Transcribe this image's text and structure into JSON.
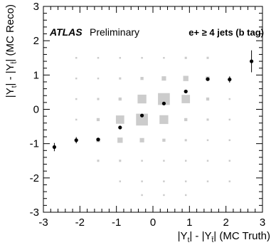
{
  "chart_data": {
    "type": "scatter",
    "annotations": {
      "experiment": "ATLAS",
      "status": "Preliminary",
      "channel": "e+ ≥ 4 jets (b tag)"
    },
    "xlabel": {
      "main": "|Y",
      "sub1": "t",
      "mid": "| - |Y",
      "sub2": "t̄",
      "end": "| (MC Truth)"
    },
    "ylabel": {
      "main": "|Y",
      "sub1": "t",
      "mid": "| - |Y",
      "sub2": "t̄",
      "end": "| (MC Reco)"
    },
    "xlim": [
      -3,
      3
    ],
    "ylim": [
      -3,
      3
    ],
    "xticks": [
      "-3",
      "-2",
      "-1",
      "0",
      "1",
      "2",
      "3"
    ],
    "yticks": [
      "-3",
      "-2",
      "-1",
      "0",
      "1",
      "2",
      "3"
    ],
    "grid": false,
    "bin_edges": [
      -3,
      -2.4,
      -1.8,
      -1.2,
      -0.6,
      0,
      0.6,
      1.2,
      1.8,
      2.4,
      3
    ],
    "migration_color": "#cccccc",
    "migration_matrix_relative_size": [
      [
        0.0,
        0.0,
        0.0,
        0.0,
        0.0,
        0.0,
        0.0,
        0.0,
        0.0,
        0.0
      ],
      [
        0.0,
        0.0,
        0.0,
        0.0,
        0.0,
        0.0,
        0.0,
        0.0,
        0.0,
        0.0
      ],
      [
        0.0,
        0.0,
        0.0,
        0.0,
        0.0,
        0.0,
        0.0,
        0.0,
        0.0,
        0.0
      ],
      [
        0.0,
        0.0,
        0.0,
        0.0,
        0.0,
        0.0,
        0.0,
        0.0,
        0.0,
        0.0
      ],
      [
        0.0,
        0.0,
        0.0,
        0.0,
        0.0,
        0.0,
        0.0,
        0.0,
        0.0,
        0.0
      ],
      [
        0.0,
        0.0,
        0.0,
        0.0,
        0.0,
        0.0,
        0.0,
        0.0,
        0.0,
        0.0
      ],
      [
        0.0,
        0.0,
        0.0,
        0.0,
        0.0,
        0.0,
        0.0,
        0.0,
        0.0,
        0.0
      ],
      [
        0.0,
        0.0,
        0.0,
        0.0,
        0.0,
        0.0,
        0.0,
        0.0,
        0.0,
        0.0
      ],
      [
        0.0,
        0.0,
        0.0,
        0.0,
        0.0,
        0.0,
        0.0,
        0.0,
        0.0,
        0.0
      ],
      [
        0.0,
        0.0,
        0.0,
        0.0,
        0.0,
        0.0,
        0.0,
        0.0,
        0.0,
        0.0
      ]
    ],
    "migration_boxes": [
      {
        "x": -2.1,
        "y": 1.5,
        "s": 0.08
      },
      {
        "x": -1.5,
        "y": 1.5,
        "s": 0.08
      },
      {
        "x": -0.9,
        "y": 1.5,
        "s": 0.08
      },
      {
        "x": -0.3,
        "y": 1.5,
        "s": 0.08
      },
      {
        "x": 0.3,
        "y": 1.5,
        "s": 0.08
      },
      {
        "x": 0.9,
        "y": 1.5,
        "s": 0.1
      },
      {
        "x": 1.5,
        "y": 1.5,
        "s": 0.1
      },
      {
        "x": -2.1,
        "y": 0.9,
        "s": 0.08
      },
      {
        "x": -1.5,
        "y": 0.9,
        "s": 0.08
      },
      {
        "x": -0.9,
        "y": 0.9,
        "s": 0.1
      },
      {
        "x": -0.3,
        "y": 0.9,
        "s": 0.14
      },
      {
        "x": 0.3,
        "y": 0.9,
        "s": 0.2
      },
      {
        "x": 0.9,
        "y": 0.9,
        "s": 0.24
      },
      {
        "x": 1.5,
        "y": 0.9,
        "s": 0.18
      },
      {
        "x": 2.1,
        "y": 0.9,
        "s": 0.1
      },
      {
        "x": -2.1,
        "y": 0.3,
        "s": 0.08
      },
      {
        "x": -1.5,
        "y": 0.3,
        "s": 0.1
      },
      {
        "x": -0.9,
        "y": 0.3,
        "s": 0.14
      },
      {
        "x": -0.3,
        "y": 0.3,
        "s": 0.4
      },
      {
        "x": 0.3,
        "y": 0.3,
        "s": 0.54
      },
      {
        "x": 0.9,
        "y": 0.3,
        "s": 0.38
      },
      {
        "x": 1.5,
        "y": 0.3,
        "s": 0.14
      },
      {
        "x": 2.1,
        "y": 0.3,
        "s": 0.08
      },
      {
        "x": -2.1,
        "y": -0.3,
        "s": 0.08
      },
      {
        "x": -1.5,
        "y": -0.3,
        "s": 0.14
      },
      {
        "x": -0.9,
        "y": -0.3,
        "s": 0.38
      },
      {
        "x": -0.3,
        "y": -0.3,
        "s": 0.54
      },
      {
        "x": 0.3,
        "y": -0.3,
        "s": 0.4
      },
      {
        "x": 0.9,
        "y": -0.3,
        "s": 0.14
      },
      {
        "x": 1.5,
        "y": -0.3,
        "s": 0.1
      },
      {
        "x": 2.1,
        "y": -0.3,
        "s": 0.08
      },
      {
        "x": -2.1,
        "y": -0.9,
        "s": 0.1
      },
      {
        "x": -1.5,
        "y": -0.9,
        "s": 0.18
      },
      {
        "x": -0.9,
        "y": -0.9,
        "s": 0.24
      },
      {
        "x": -0.3,
        "y": -0.9,
        "s": 0.2
      },
      {
        "x": 0.3,
        "y": -0.9,
        "s": 0.14
      },
      {
        "x": 0.9,
        "y": -0.9,
        "s": 0.1
      },
      {
        "x": 1.5,
        "y": -0.9,
        "s": 0.08
      },
      {
        "x": 2.1,
        "y": -0.9,
        "s": 0.08
      },
      {
        "x": -1.5,
        "y": -1.5,
        "s": 0.1
      },
      {
        "x": -0.9,
        "y": -1.5,
        "s": 0.1
      },
      {
        "x": -0.3,
        "y": -1.5,
        "s": 0.08
      },
      {
        "x": 0.3,
        "y": -1.5,
        "s": 0.08
      },
      {
        "x": 0.9,
        "y": -1.5,
        "s": 0.08
      },
      {
        "x": 1.5,
        "y": -1.5,
        "s": 0.08
      },
      {
        "x": 2.1,
        "y": -1.5,
        "s": 0.08
      },
      {
        "x": -0.9,
        "y": -2.1,
        "s": 0.08
      },
      {
        "x": -0.3,
        "y": -2.1,
        "s": 0.08
      },
      {
        "x": 0.3,
        "y": -2.1,
        "s": 0.08
      },
      {
        "x": 0.9,
        "y": -2.1,
        "s": 0.08
      },
      {
        "x": 1.5,
        "y": -2.1,
        "s": 0.08
      },
      {
        "x": 2.1,
        "y": -2.1,
        "s": 0.08
      },
      {
        "x": -0.3,
        "y": -2.5,
        "s": 0.08
      },
      {
        "x": 0.3,
        "y": -2.5,
        "s": 0.08
      },
      {
        "x": 0.9,
        "y": -2.5,
        "s": 0.08
      }
    ],
    "profile_points": [
      {
        "x": -2.7,
        "y": -1.1,
        "err": 0.12
      },
      {
        "x": -2.1,
        "y": -0.9,
        "err": 0.09
      },
      {
        "x": -1.5,
        "y": -0.88,
        "err": 0.04
      },
      {
        "x": -0.9,
        "y": -0.53,
        "err": 0.02
      },
      {
        "x": -0.3,
        "y": -0.18,
        "err": 0.02
      },
      {
        "x": 0.3,
        "y": 0.17,
        "err": 0.02
      },
      {
        "x": 0.9,
        "y": 0.52,
        "err": 0.02
      },
      {
        "x": 1.5,
        "y": 0.88,
        "err": 0.04
      },
      {
        "x": 2.1,
        "y": 0.87,
        "err": 0.09
      },
      {
        "x": 2.7,
        "y": 1.4,
        "err": 0.32
      }
    ]
  }
}
